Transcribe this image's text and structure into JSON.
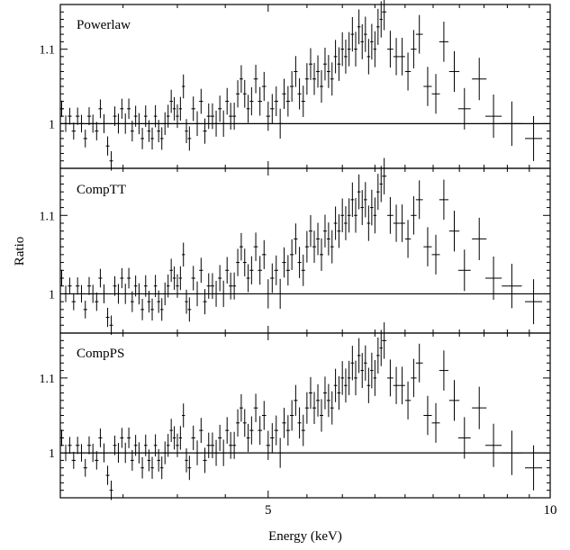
{
  "chart_data": {
    "type": "scatter",
    "xlabel": "Energy (keV)",
    "ylabel": "Ratio",
    "x_tick_labels": [
      "5",
      "10"
    ],
    "y_tick_labels": [
      "1",
      "1.1"
    ],
    "xlim": [
      3,
      10
    ],
    "xscale": "log",
    "reference_line": 1,
    "shared_x_axis": true,
    "panels": [
      {
        "name": "Powerlaw",
        "ylim": [
          0.94,
          1.16
        ],
        "points": [
          [
            3.01,
            1.02
          ],
          [
            3.04,
            1.0
          ],
          [
            3.07,
            1.01
          ],
          [
            3.1,
            0.99
          ],
          [
            3.13,
            1.01
          ],
          [
            3.16,
            1.0
          ],
          [
            3.19,
            0.98
          ],
          [
            3.22,
            1.01
          ],
          [
            3.25,
            1.0
          ],
          [
            3.28,
            0.99
          ],
          [
            3.31,
            1.02
          ],
          [
            3.34,
            1.0
          ],
          [
            3.37,
            0.97
          ],
          [
            3.4,
            0.95
          ],
          [
            3.43,
            1.01
          ],
          [
            3.46,
            1.0
          ],
          [
            3.49,
            1.02
          ],
          [
            3.52,
            1.0
          ],
          [
            3.55,
            1.02
          ],
          [
            3.58,
            0.99
          ],
          [
            3.61,
            1.01
          ],
          [
            3.64,
            1.0
          ],
          [
            3.67,
            0.98
          ],
          [
            3.7,
            1.01
          ],
          [
            3.73,
            0.99
          ],
          [
            3.76,
            0.98
          ],
          [
            3.79,
            1.01
          ],
          [
            3.82,
            0.99
          ],
          [
            3.85,
            0.98
          ],
          [
            3.88,
            1.0
          ],
          [
            3.91,
            1.01
          ],
          [
            3.94,
            1.03
          ],
          [
            3.97,
            1.02
          ],
          [
            4.0,
            1.01
          ],
          [
            4.03,
            1.02
          ],
          [
            4.06,
            1.05
          ],
          [
            4.09,
            0.99
          ],
          [
            4.12,
            0.98
          ],
          [
            4.16,
            1.02
          ],
          [
            4.2,
            1.0
          ],
          [
            4.24,
            1.03
          ],
          [
            4.28,
            0.99
          ],
          [
            4.32,
            1.01
          ],
          [
            4.36,
            1.01
          ],
          [
            4.4,
            1.0
          ],
          [
            4.44,
            1.02
          ],
          [
            4.48,
            1.0
          ],
          [
            4.52,
            1.03
          ],
          [
            4.56,
            1.01
          ],
          [
            4.6,
            1.01
          ],
          [
            4.64,
            1.04
          ],
          [
            4.68,
            1.06
          ],
          [
            4.72,
            1.04
          ],
          [
            4.76,
            1.02
          ],
          [
            4.8,
            1.03
          ],
          [
            4.85,
            1.06
          ],
          [
            4.9,
            1.03
          ],
          [
            4.95,
            1.05
          ],
          [
            5.0,
            1.01
          ],
          [
            5.05,
            1.02
          ],
          [
            5.1,
            1.03
          ],
          [
            5.15,
            1.0
          ],
          [
            5.2,
            1.04
          ],
          [
            5.25,
            1.03
          ],
          [
            5.3,
            1.05
          ],
          [
            5.35,
            1.07
          ],
          [
            5.4,
            1.04
          ],
          [
            5.45,
            1.03
          ],
          [
            5.5,
            1.06
          ],
          [
            5.55,
            1.08
          ],
          [
            5.6,
            1.06
          ],
          [
            5.65,
            1.07
          ],
          [
            5.7,
            1.05
          ],
          [
            5.75,
            1.08
          ],
          [
            5.8,
            1.07
          ],
          [
            5.85,
            1.06
          ],
          [
            5.9,
            1.09
          ],
          [
            5.95,
            1.08
          ],
          [
            6.0,
            1.1
          ],
          [
            6.05,
            1.09
          ],
          [
            6.1,
            1.1
          ],
          [
            6.15,
            1.12
          ],
          [
            6.2,
            1.1
          ],
          [
            6.25,
            1.13
          ],
          [
            6.3,
            1.11
          ],
          [
            6.35,
            1.12
          ],
          [
            6.4,
            1.09
          ],
          [
            6.45,
            1.11
          ],
          [
            6.5,
            1.1
          ],
          [
            6.55,
            1.13
          ],
          [
            6.6,
            1.14
          ],
          [
            6.65,
            1.15
          ],
          [
            6.75,
            1.1
          ],
          [
            6.85,
            1.09
          ],
          [
            6.95,
            1.09
          ],
          [
            7.05,
            1.07
          ],
          [
            7.15,
            1.1
          ],
          [
            7.25,
            1.12
          ],
          [
            7.4,
            1.05
          ],
          [
            7.55,
            1.04
          ],
          [
            7.7,
            1.11
          ],
          [
            7.9,
            1.07
          ],
          [
            8.1,
            1.02
          ],
          [
            8.4,
            1.06
          ],
          [
            8.7,
            1.01
          ],
          [
            9.1,
            1.0
          ],
          [
            9.6,
            0.98
          ]
        ]
      },
      {
        "name": "CompTT",
        "ylim": [
          0.95,
          1.16
        ],
        "points": [
          [
            3.01,
            1.02
          ],
          [
            3.04,
            1.0
          ],
          [
            3.07,
            1.01
          ],
          [
            3.1,
            0.99
          ],
          [
            3.13,
            1.01
          ],
          [
            3.16,
            1.0
          ],
          [
            3.19,
            0.98
          ],
          [
            3.22,
            1.01
          ],
          [
            3.25,
            1.0
          ],
          [
            3.28,
            0.99
          ],
          [
            3.31,
            1.02
          ],
          [
            3.34,
            1.0
          ],
          [
            3.37,
            0.97
          ],
          [
            3.4,
            0.96
          ],
          [
            3.43,
            1.01
          ],
          [
            3.46,
            1.0
          ],
          [
            3.49,
            1.02
          ],
          [
            3.52,
            1.0
          ],
          [
            3.55,
            1.02
          ],
          [
            3.58,
            0.99
          ],
          [
            3.61,
            1.01
          ],
          [
            3.64,
            1.0
          ],
          [
            3.67,
            0.98
          ],
          [
            3.7,
            1.01
          ],
          [
            3.73,
            0.99
          ],
          [
            3.76,
            0.98
          ],
          [
            3.79,
            1.01
          ],
          [
            3.82,
            0.99
          ],
          [
            3.85,
            0.98
          ],
          [
            3.88,
            1.0
          ],
          [
            3.91,
            1.01
          ],
          [
            3.94,
            1.03
          ],
          [
            3.97,
            1.02
          ],
          [
            4.0,
            1.01
          ],
          [
            4.03,
            1.02
          ],
          [
            4.06,
            1.05
          ],
          [
            4.09,
            0.99
          ],
          [
            4.12,
            0.98
          ],
          [
            4.16,
            1.02
          ],
          [
            4.2,
            1.0
          ],
          [
            4.24,
            1.03
          ],
          [
            4.28,
            0.99
          ],
          [
            4.32,
            1.01
          ],
          [
            4.36,
            1.01
          ],
          [
            4.4,
            1.0
          ],
          [
            4.44,
            1.02
          ],
          [
            4.48,
            1.0
          ],
          [
            4.52,
            1.03
          ],
          [
            4.56,
            1.01
          ],
          [
            4.6,
            1.01
          ],
          [
            4.64,
            1.04
          ],
          [
            4.68,
            1.06
          ],
          [
            4.72,
            1.04
          ],
          [
            4.76,
            1.02
          ],
          [
            4.8,
            1.03
          ],
          [
            4.85,
            1.06
          ],
          [
            4.9,
            1.03
          ],
          [
            4.95,
            1.05
          ],
          [
            5.0,
            1.0
          ],
          [
            5.05,
            1.02
          ],
          [
            5.1,
            1.03
          ],
          [
            5.15,
            1.0
          ],
          [
            5.2,
            1.04
          ],
          [
            5.25,
            1.03
          ],
          [
            5.3,
            1.05
          ],
          [
            5.35,
            1.07
          ],
          [
            5.4,
            1.04
          ],
          [
            5.45,
            1.03
          ],
          [
            5.5,
            1.06
          ],
          [
            5.55,
            1.08
          ],
          [
            5.6,
            1.06
          ],
          [
            5.65,
            1.07
          ],
          [
            5.7,
            1.05
          ],
          [
            5.75,
            1.08
          ],
          [
            5.8,
            1.07
          ],
          [
            5.85,
            1.06
          ],
          [
            5.9,
            1.09
          ],
          [
            5.95,
            1.08
          ],
          [
            6.0,
            1.1
          ],
          [
            6.05,
            1.09
          ],
          [
            6.1,
            1.1
          ],
          [
            6.15,
            1.12
          ],
          [
            6.2,
            1.1
          ],
          [
            6.25,
            1.13
          ],
          [
            6.3,
            1.11
          ],
          [
            6.35,
            1.12
          ],
          [
            6.4,
            1.09
          ],
          [
            6.45,
            1.11
          ],
          [
            6.5,
            1.1
          ],
          [
            6.55,
            1.13
          ],
          [
            6.6,
            1.14
          ],
          [
            6.65,
            1.15
          ],
          [
            6.75,
            1.1
          ],
          [
            6.85,
            1.09
          ],
          [
            6.95,
            1.09
          ],
          [
            7.05,
            1.07
          ],
          [
            7.15,
            1.1
          ],
          [
            7.25,
            1.12
          ],
          [
            7.4,
            1.06
          ],
          [
            7.55,
            1.05
          ],
          [
            7.7,
            1.12
          ],
          [
            7.9,
            1.08
          ],
          [
            8.1,
            1.03
          ],
          [
            8.4,
            1.07
          ],
          [
            8.7,
            1.02
          ],
          [
            9.1,
            1.01
          ],
          [
            9.6,
            0.99
          ]
        ]
      },
      {
        "name": "CompPS",
        "ylim": [
          0.94,
          1.16
        ],
        "points": [
          [
            3.01,
            1.02
          ],
          [
            3.04,
            1.0
          ],
          [
            3.07,
            1.01
          ],
          [
            3.1,
            0.99
          ],
          [
            3.13,
            1.01
          ],
          [
            3.16,
            1.0
          ],
          [
            3.19,
            0.98
          ],
          [
            3.22,
            1.01
          ],
          [
            3.25,
            1.0
          ],
          [
            3.28,
            0.99
          ],
          [
            3.31,
            1.02
          ],
          [
            3.34,
            1.0
          ],
          [
            3.37,
            0.97
          ],
          [
            3.4,
            0.95
          ],
          [
            3.43,
            1.01
          ],
          [
            3.46,
            1.0
          ],
          [
            3.49,
            1.02
          ],
          [
            3.52,
            1.0
          ],
          [
            3.55,
            1.02
          ],
          [
            3.58,
            0.99
          ],
          [
            3.61,
            1.01
          ],
          [
            3.64,
            1.0
          ],
          [
            3.67,
            0.98
          ],
          [
            3.7,
            1.01
          ],
          [
            3.73,
            0.99
          ],
          [
            3.76,
            0.98
          ],
          [
            3.79,
            1.01
          ],
          [
            3.82,
            0.99
          ],
          [
            3.85,
            0.98
          ],
          [
            3.88,
            1.0
          ],
          [
            3.91,
            1.01
          ],
          [
            3.94,
            1.03
          ],
          [
            3.97,
            1.02
          ],
          [
            4.0,
            1.01
          ],
          [
            4.03,
            1.02
          ],
          [
            4.06,
            1.05
          ],
          [
            4.09,
            0.99
          ],
          [
            4.12,
            0.98
          ],
          [
            4.16,
            1.02
          ],
          [
            4.2,
            1.0
          ],
          [
            4.24,
            1.03
          ],
          [
            4.28,
            0.99
          ],
          [
            4.32,
            1.01
          ],
          [
            4.36,
            1.01
          ],
          [
            4.4,
            1.0
          ],
          [
            4.44,
            1.02
          ],
          [
            4.48,
            1.0
          ],
          [
            4.52,
            1.03
          ],
          [
            4.56,
            1.01
          ],
          [
            4.6,
            1.01
          ],
          [
            4.64,
            1.04
          ],
          [
            4.68,
            1.06
          ],
          [
            4.72,
            1.04
          ],
          [
            4.76,
            1.02
          ],
          [
            4.8,
            1.03
          ],
          [
            4.85,
            1.06
          ],
          [
            4.9,
            1.03
          ],
          [
            4.95,
            1.05
          ],
          [
            5.0,
            1.01
          ],
          [
            5.05,
            1.02
          ],
          [
            5.1,
            1.03
          ],
          [
            5.15,
            1.0
          ],
          [
            5.2,
            1.04
          ],
          [
            5.25,
            1.03
          ],
          [
            5.3,
            1.05
          ],
          [
            5.35,
            1.07
          ],
          [
            5.4,
            1.04
          ],
          [
            5.45,
            1.03
          ],
          [
            5.5,
            1.06
          ],
          [
            5.55,
            1.08
          ],
          [
            5.6,
            1.06
          ],
          [
            5.65,
            1.07
          ],
          [
            5.7,
            1.05
          ],
          [
            5.75,
            1.08
          ],
          [
            5.8,
            1.07
          ],
          [
            5.85,
            1.06
          ],
          [
            5.9,
            1.09
          ],
          [
            5.95,
            1.08
          ],
          [
            6.0,
            1.1
          ],
          [
            6.05,
            1.09
          ],
          [
            6.1,
            1.1
          ],
          [
            6.15,
            1.12
          ],
          [
            6.2,
            1.1
          ],
          [
            6.25,
            1.13
          ],
          [
            6.3,
            1.11
          ],
          [
            6.35,
            1.12
          ],
          [
            6.4,
            1.09
          ],
          [
            6.45,
            1.11
          ],
          [
            6.5,
            1.1
          ],
          [
            6.55,
            1.13
          ],
          [
            6.6,
            1.14
          ],
          [
            6.65,
            1.15
          ],
          [
            6.75,
            1.1
          ],
          [
            6.85,
            1.09
          ],
          [
            6.95,
            1.09
          ],
          [
            7.05,
            1.07
          ],
          [
            7.15,
            1.1
          ],
          [
            7.25,
            1.12
          ],
          [
            7.4,
            1.05
          ],
          [
            7.55,
            1.04
          ],
          [
            7.7,
            1.11
          ],
          [
            7.9,
            1.07
          ],
          [
            8.1,
            1.02
          ],
          [
            8.4,
            1.06
          ],
          [
            8.7,
            1.01
          ],
          [
            9.1,
            1.0
          ],
          [
            9.6,
            0.98
          ]
        ]
      }
    ]
  }
}
